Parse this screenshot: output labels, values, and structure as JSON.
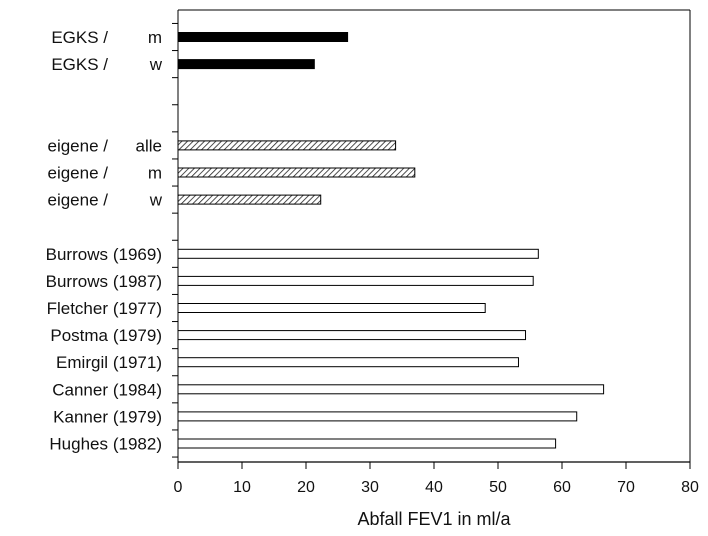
{
  "chart_data": {
    "type": "bar",
    "orientation": "horizontal",
    "xlabel": "Abfall FEV1 in ml/a",
    "xlim": [
      0,
      80
    ],
    "xticks": [
      0,
      10,
      20,
      30,
      40,
      50,
      60,
      70,
      80
    ],
    "grid": false,
    "legend": "none",
    "bars": [
      {
        "label_left": "EGKS /",
        "label_right": "m",
        "value": 26.5,
        "style": "solid"
      },
      {
        "label_left": "EGKS /",
        "label_right": "w",
        "value": 21.3,
        "style": "solid"
      },
      {
        "gap": true
      },
      {
        "gap": true
      },
      {
        "label_left": "eigene /",
        "label_right": "alle",
        "value": 34,
        "style": "hatched"
      },
      {
        "label_left": "eigene /",
        "label_right": "m",
        "value": 37,
        "style": "hatched"
      },
      {
        "label_left": "eigene /",
        "label_right": "w",
        "value": 22.3,
        "style": "hatched"
      },
      {
        "gap": true
      },
      {
        "label_left": "Burrows",
        "label_right": "(1969)",
        "value": 56.3,
        "style": "open"
      },
      {
        "label_left": "Burrows",
        "label_right": "(1987)",
        "value": 55.5,
        "style": "open"
      },
      {
        "label_left": "Fletcher",
        "label_right": "(1977)",
        "value": 48,
        "style": "open"
      },
      {
        "label_left": "Postma",
        "label_right": "(1979)",
        "value": 54.3,
        "style": "open"
      },
      {
        "label_left": "Emirgil",
        "label_right": "(1971)",
        "value": 53.2,
        "style": "open"
      },
      {
        "label_left": "Canner",
        "label_right": "(1984)",
        "value": 66.5,
        "style": "open"
      },
      {
        "label_left": "Kanner",
        "label_right": "(1979)",
        "value": 62.3,
        "style": "open"
      },
      {
        "label_left": "Hughes",
        "label_right": "(1982)",
        "value": 59,
        "style": "open"
      }
    ],
    "colors": {
      "solid": "#000000",
      "hatched_line": "#222222",
      "open_fill": "#ffffff",
      "stroke": "#000000"
    }
  }
}
